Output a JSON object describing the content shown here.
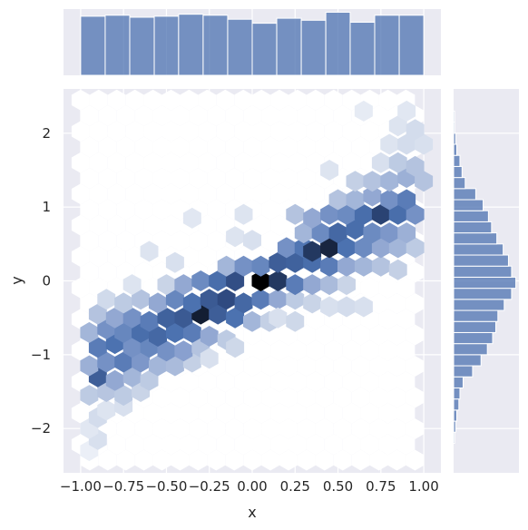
{
  "chart_data": {
    "type": "hexbin-jointplot",
    "xlabel": "x",
    "ylabel": "y",
    "xlim": [
      -1.1,
      1.1
    ],
    "ylim": [
      -2.6,
      2.6
    ],
    "x_ticks": [
      -1.0,
      -0.75,
      -0.5,
      -0.25,
      0.0,
      0.25,
      0.5,
      0.75,
      1.0
    ],
    "x_tick_labels": [
      "−1.00",
      "−0.75",
      "−0.50",
      "−0.25",
      "0.00",
      "0.25",
      "0.50",
      "0.75",
      "1.00"
    ],
    "y_ticks": [
      -2,
      -1,
      0,
      1,
      2
    ],
    "y_tick_labels": [
      "−2",
      "−1",
      "0",
      "1",
      "2"
    ],
    "grid": true,
    "colors": {
      "background": "#eaeaf2",
      "grid": "#ffffff",
      "bar": "#4c72b0",
      "hex_low": "#f5f7fb",
      "hex_high": "#000000"
    },
    "top_histogram": {
      "bin_edges": [
        -1.0,
        -0.857,
        -0.714,
        -0.571,
        -0.429,
        -0.286,
        -0.143,
        0.0,
        0.143,
        0.286,
        0.429,
        0.571,
        0.714,
        0.857,
        1.0
      ],
      "counts": [
        59,
        60,
        58,
        59,
        61,
        60,
        56,
        52,
        57,
        55,
        63,
        53,
        60,
        60
      ]
    },
    "right_histogram": {
      "bin_edges": [
        -2.2,
        -2.05,
        -1.9,
        -1.75,
        -1.6,
        -1.45,
        -1.3,
        -1.15,
        -1.0,
        -0.85,
        -0.7,
        -0.55,
        -0.4,
        -0.25,
        -0.1,
        0.05,
        0.2,
        0.35,
        0.5,
        0.65,
        0.8,
        0.95,
        1.1,
        1.25,
        1.4,
        1.55,
        1.7,
        1.85,
        2.0,
        2.15,
        2.3
      ],
      "counts": [
        1,
        2,
        3,
        5,
        6,
        9,
        18,
        26,
        32,
        37,
        40,
        42,
        48,
        55,
        59,
        55,
        52,
        47,
        41,
        36,
        33,
        28,
        21,
        11,
        8,
        6,
        3,
        2,
        1,
        1
      ]
    },
    "hexbins": [
      {
        "x": -0.95,
        "y": -2.3,
        "v": 0.04
      },
      {
        "x": -0.9,
        "y": -2.15,
        "v": 0.12
      },
      {
        "x": -0.95,
        "y": -2.0,
        "v": 0.08
      },
      {
        "x": -0.9,
        "y": -1.85,
        "v": 0.14
      },
      {
        "x": -0.85,
        "y": -1.75,
        "v": 0.1
      },
      {
        "x": -0.75,
        "y": -1.7,
        "v": 0.12
      },
      {
        "x": -0.95,
        "y": -1.55,
        "v": 0.22
      },
      {
        "x": -0.85,
        "y": -1.5,
        "v": 0.24
      },
      {
        "x": -0.75,
        "y": -1.55,
        "v": 0.22
      },
      {
        "x": -0.65,
        "y": -1.5,
        "v": 0.18
      },
      {
        "x": -0.9,
        "y": -1.3,
        "v": 0.7
      },
      {
        "x": -0.8,
        "y": -1.35,
        "v": 0.35
      },
      {
        "x": -0.7,
        "y": -1.3,
        "v": 0.3
      },
      {
        "x": -0.6,
        "y": -1.35,
        "v": 0.22
      },
      {
        "x": -0.95,
        "y": -1.15,
        "v": 0.32
      },
      {
        "x": -0.85,
        "y": -1.1,
        "v": 0.45
      },
      {
        "x": -0.75,
        "y": -1.1,
        "v": 0.55
      },
      {
        "x": -0.65,
        "y": -1.1,
        "v": 0.42
      },
      {
        "x": -0.55,
        "y": -1.15,
        "v": 0.3
      },
      {
        "x": -0.45,
        "y": -1.15,
        "v": 0.28
      },
      {
        "x": -0.35,
        "y": -1.1,
        "v": 0.2
      },
      {
        "x": -0.9,
        "y": -0.9,
        "v": 0.55
      },
      {
        "x": -0.8,
        "y": -0.85,
        "v": 0.6
      },
      {
        "x": -0.7,
        "y": -0.9,
        "v": 0.45
      },
      {
        "x": -0.6,
        "y": -0.9,
        "v": 0.5
      },
      {
        "x": -0.5,
        "y": -0.95,
        "v": 0.45
      },
      {
        "x": -0.4,
        "y": -0.95,
        "v": 0.38
      },
      {
        "x": -0.3,
        "y": -0.9,
        "v": 0.25
      },
      {
        "x": -0.95,
        "y": -0.7,
        "v": 0.3
      },
      {
        "x": -0.85,
        "y": -0.65,
        "v": 0.45
      },
      {
        "x": -0.75,
        "y": -0.7,
        "v": 0.5
      },
      {
        "x": -0.65,
        "y": -0.7,
        "v": 0.62
      },
      {
        "x": -0.55,
        "y": -0.75,
        "v": 0.65
      },
      {
        "x": -0.45,
        "y": -0.7,
        "v": 0.6
      },
      {
        "x": -0.35,
        "y": -0.7,
        "v": 0.55
      },
      {
        "x": -0.25,
        "y": -0.75,
        "v": 0.35
      },
      {
        "x": -0.15,
        "y": -0.8,
        "v": 0.22
      },
      {
        "x": -0.9,
        "y": -0.45,
        "v": 0.25
      },
      {
        "x": -0.8,
        "y": -0.5,
        "v": 0.35
      },
      {
        "x": -0.7,
        "y": -0.5,
        "v": 0.45
      },
      {
        "x": -0.6,
        "y": -0.55,
        "v": 0.55
      },
      {
        "x": -0.5,
        "y": -0.5,
        "v": 0.68
      },
      {
        "x": -0.4,
        "y": -0.5,
        "v": 0.72
      },
      {
        "x": -0.3,
        "y": -0.45,
        "v": 0.92
      },
      {
        "x": -0.2,
        "y": -0.45,
        "v": 0.7
      },
      {
        "x": -0.1,
        "y": -0.5,
        "v": 0.6
      },
      {
        "x": 0.0,
        "y": -0.55,
        "v": 0.3
      },
      {
        "x": 0.1,
        "y": -0.55,
        "v": 0.2
      },
      {
        "x": -0.85,
        "y": -0.25,
        "v": 0.15
      },
      {
        "x": -0.75,
        "y": -0.3,
        "v": 0.22
      },
      {
        "x": -0.65,
        "y": -0.25,
        "v": 0.25
      },
      {
        "x": -0.55,
        "y": -0.3,
        "v": 0.35
      },
      {
        "x": -0.45,
        "y": -0.25,
        "v": 0.5
      },
      {
        "x": -0.35,
        "y": -0.3,
        "v": 0.6
      },
      {
        "x": -0.25,
        "y": -0.25,
        "v": 0.72
      },
      {
        "x": -0.15,
        "y": -0.25,
        "v": 0.8
      },
      {
        "x": -0.05,
        "y": -0.3,
        "v": 0.65
      },
      {
        "x": 0.05,
        "y": -0.25,
        "v": 0.55
      },
      {
        "x": 0.15,
        "y": -0.25,
        "v": 0.35
      },
      {
        "x": 0.25,
        "y": -0.25,
        "v": 0.22
      },
      {
        "x": 0.35,
        "y": -0.3,
        "v": 0.18
      },
      {
        "x": -0.7,
        "y": -0.05,
        "v": 0.1
      },
      {
        "x": -0.5,
        "y": -0.05,
        "v": 0.18
      },
      {
        "x": -0.4,
        "y": -0.05,
        "v": 0.35
      },
      {
        "x": -0.3,
        "y": 0.0,
        "v": 0.48
      },
      {
        "x": -0.2,
        "y": 0.0,
        "v": 0.62
      },
      {
        "x": -0.1,
        "y": 0.0,
        "v": 0.78
      },
      {
        "x": 0.05,
        "y": 0.0,
        "v": 1.0
      },
      {
        "x": 0.15,
        "y": 0.0,
        "v": 0.85
      },
      {
        "x": 0.25,
        "y": -0.05,
        "v": 0.55
      },
      {
        "x": 0.35,
        "y": -0.05,
        "v": 0.35
      },
      {
        "x": 0.45,
        "y": -0.05,
        "v": 0.28
      },
      {
        "x": 0.55,
        "y": -0.05,
        "v": 0.18
      },
      {
        "x": -0.15,
        "y": 0.2,
        "v": 0.3
      },
      {
        "x": -0.05,
        "y": 0.2,
        "v": 0.45
      },
      {
        "x": 0.05,
        "y": 0.2,
        "v": 0.5
      },
      {
        "x": 0.15,
        "y": 0.25,
        "v": 0.7
      },
      {
        "x": 0.25,
        "y": 0.25,
        "v": 0.68
      },
      {
        "x": 0.35,
        "y": 0.25,
        "v": 0.62
      },
      {
        "x": 0.45,
        "y": 0.2,
        "v": 0.55
      },
      {
        "x": 0.55,
        "y": 0.2,
        "v": 0.35
      },
      {
        "x": 0.65,
        "y": 0.2,
        "v": 0.3
      },
      {
        "x": 0.75,
        "y": 0.2,
        "v": 0.25
      },
      {
        "x": 0.85,
        "y": 0.15,
        "v": 0.2
      },
      {
        "x": 0.2,
        "y": 0.45,
        "v": 0.45
      },
      {
        "x": 0.3,
        "y": 0.45,
        "v": 0.58
      },
      {
        "x": 0.35,
        "y": 0.4,
        "v": 0.85
      },
      {
        "x": 0.45,
        "y": 0.45,
        "v": 0.9
      },
      {
        "x": 0.55,
        "y": 0.45,
        "v": 0.6
      },
      {
        "x": 0.65,
        "y": 0.45,
        "v": 0.48
      },
      {
        "x": 0.75,
        "y": 0.45,
        "v": 0.35
      },
      {
        "x": 0.85,
        "y": 0.45,
        "v": 0.3
      },
      {
        "x": 0.95,
        "y": 0.45,
        "v": 0.22
      },
      {
        "x": 0.3,
        "y": 0.65,
        "v": 0.3
      },
      {
        "x": 0.4,
        "y": 0.65,
        "v": 0.48
      },
      {
        "x": 0.5,
        "y": 0.65,
        "v": 0.65
      },
      {
        "x": 0.6,
        "y": 0.7,
        "v": 0.62
      },
      {
        "x": 0.7,
        "y": 0.65,
        "v": 0.48
      },
      {
        "x": 0.8,
        "y": 0.65,
        "v": 0.42
      },
      {
        "x": 0.9,
        "y": 0.65,
        "v": 0.32
      },
      {
        "x": 0.25,
        "y": 0.9,
        "v": 0.25
      },
      {
        "x": 0.35,
        "y": 0.85,
        "v": 0.35
      },
      {
        "x": 0.45,
        "y": 0.9,
        "v": 0.45
      },
      {
        "x": 0.55,
        "y": 0.9,
        "v": 0.48
      },
      {
        "x": 0.65,
        "y": 0.9,
        "v": 0.62
      },
      {
        "x": 0.75,
        "y": 0.9,
        "v": 0.82
      },
      {
        "x": 0.85,
        "y": 0.9,
        "v": 0.62
      },
      {
        "x": 0.95,
        "y": 0.9,
        "v": 0.45
      },
      {
        "x": 0.5,
        "y": 1.1,
        "v": 0.25
      },
      {
        "x": 0.6,
        "y": 1.1,
        "v": 0.3
      },
      {
        "x": 0.7,
        "y": 1.15,
        "v": 0.35
      },
      {
        "x": 0.8,
        "y": 1.1,
        "v": 0.45
      },
      {
        "x": 0.9,
        "y": 1.1,
        "v": 0.55
      },
      {
        "x": 0.6,
        "y": 1.35,
        "v": 0.2
      },
      {
        "x": 0.7,
        "y": 1.35,
        "v": 0.25
      },
      {
        "x": 0.8,
        "y": 1.35,
        "v": 0.3
      },
      {
        "x": 0.9,
        "y": 1.4,
        "v": 0.32
      },
      {
        "x": 1.0,
        "y": 1.35,
        "v": 0.25
      },
      {
        "x": 0.75,
        "y": 1.6,
        "v": 0.12
      },
      {
        "x": 0.85,
        "y": 1.6,
        "v": 0.22
      },
      {
        "x": 0.95,
        "y": 1.55,
        "v": 0.25
      },
      {
        "x": 0.8,
        "y": 1.85,
        "v": 0.1
      },
      {
        "x": 0.9,
        "y": 1.85,
        "v": 0.14
      },
      {
        "x": 1.0,
        "y": 1.85,
        "v": 0.12
      },
      {
        "x": 0.85,
        "y": 2.1,
        "v": 0.1
      },
      {
        "x": 0.95,
        "y": 2.05,
        "v": 0.14
      },
      {
        "x": 0.9,
        "y": 2.3,
        "v": 0.08
      },
      {
        "x": 0.65,
        "y": 2.3,
        "v": 0.06
      },
      {
        "x": -0.1,
        "y": 0.6,
        "v": 0.1
      },
      {
        "x": 0.0,
        "y": 0.55,
        "v": 0.12
      },
      {
        "x": -0.35,
        "y": 0.85,
        "v": 0.08
      },
      {
        "x": -0.05,
        "y": 0.9,
        "v": 0.1
      },
      {
        "x": 0.45,
        "y": -0.35,
        "v": 0.12
      },
      {
        "x": 0.55,
        "y": -0.35,
        "v": 0.14
      },
      {
        "x": 0.65,
        "y": -0.35,
        "v": 0.12
      },
      {
        "x": 0.45,
        "y": 1.5,
        "v": 0.1
      },
      {
        "x": 0.15,
        "y": -0.5,
        "v": 0.12
      },
      {
        "x": 0.25,
        "y": -0.55,
        "v": 0.16
      },
      {
        "x": -0.6,
        "y": 0.4,
        "v": 0.1
      },
      {
        "x": -0.45,
        "y": 0.25,
        "v": 0.12
      },
      {
        "x": -0.25,
        "y": -1.05,
        "v": 0.12
      },
      {
        "x": -0.1,
        "y": -0.9,
        "v": 0.16
      }
    ]
  }
}
